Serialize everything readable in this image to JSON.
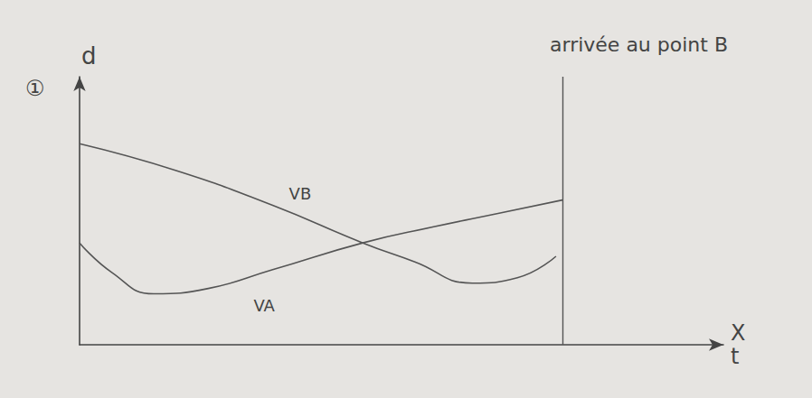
{
  "chart_data": {
    "type": "line",
    "panel": "①",
    "xlabel": "X\nt",
    "ylabel": "d",
    "xlim": [
      0,
      100
    ],
    "ylim": [
      0,
      100
    ],
    "tick_labels": false,
    "grid": false,
    "series": [
      {
        "name": "VB",
        "color": "#555555",
        "line_style": "solid",
        "x": [
          0,
          15,
          30,
          44,
          52,
          61,
          68,
          74
        ],
        "values": [
          75,
          65,
          52,
          38,
          31,
          23,
          25,
          33
        ]
      },
      {
        "name": "VA",
        "color": "#555555",
        "line_style": "solid",
        "x": [
          0,
          5,
          11.5,
          20,
          30,
          44,
          55,
          65,
          75
        ],
        "values": [
          38,
          27,
          19,
          21,
          28,
          38,
          44,
          49,
          54
        ]
      }
    ],
    "annotations": [
      {
        "text": "arrivée au point B",
        "x": 75
      }
    ]
  }
}
